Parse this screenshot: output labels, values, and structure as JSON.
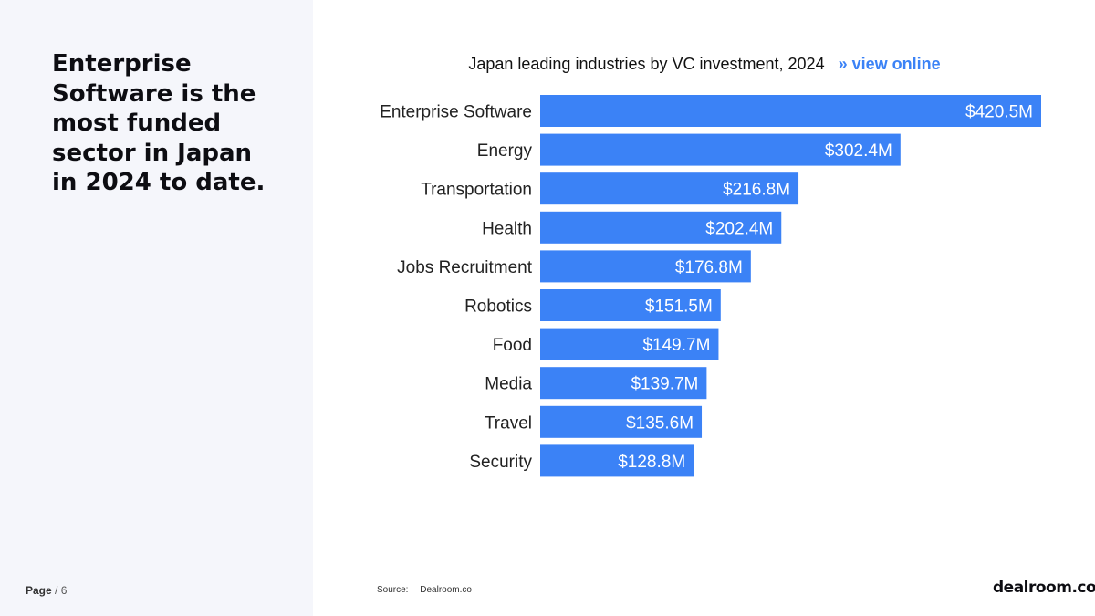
{
  "headline": "Enterprise Software is the most funded sector in Japan in 2024 to date.",
  "page": {
    "label": "Page",
    "separator": "/",
    "number": "6"
  },
  "chart_title": "Japan leading industries by VC investment, 2024",
  "view_online": "» view online",
  "source": {
    "label": "Source:",
    "name": "Dealroom.co"
  },
  "logo": "dealroom.co",
  "colors": {
    "bar": "#3b82f6",
    "accent": "#3b82f6",
    "left_panel": "#f5f6fb"
  },
  "chart_data": {
    "type": "bar",
    "orientation": "horizontal",
    "title": "Japan leading industries by VC investment, 2024",
    "categories": [
      "Enterprise Software",
      "Energy",
      "Transportation",
      "Health",
      "Jobs Recruitment",
      "Robotics",
      "Food",
      "Media",
      "Travel",
      "Security"
    ],
    "values": [
      420.5,
      302.4,
      216.8,
      202.4,
      176.8,
      151.5,
      149.7,
      139.7,
      135.6,
      128.8
    ],
    "value_labels": [
      "$420.5M",
      "$302.4M",
      "$216.8M",
      "$202.4M",
      "$176.8M",
      "$151.5M",
      "$149.7M",
      "$139.7M",
      "$135.6M",
      "$128.8M"
    ],
    "unit": "$M",
    "xlim": [
      0,
      420.5
    ],
    "grid": false,
    "legend": "none"
  }
}
